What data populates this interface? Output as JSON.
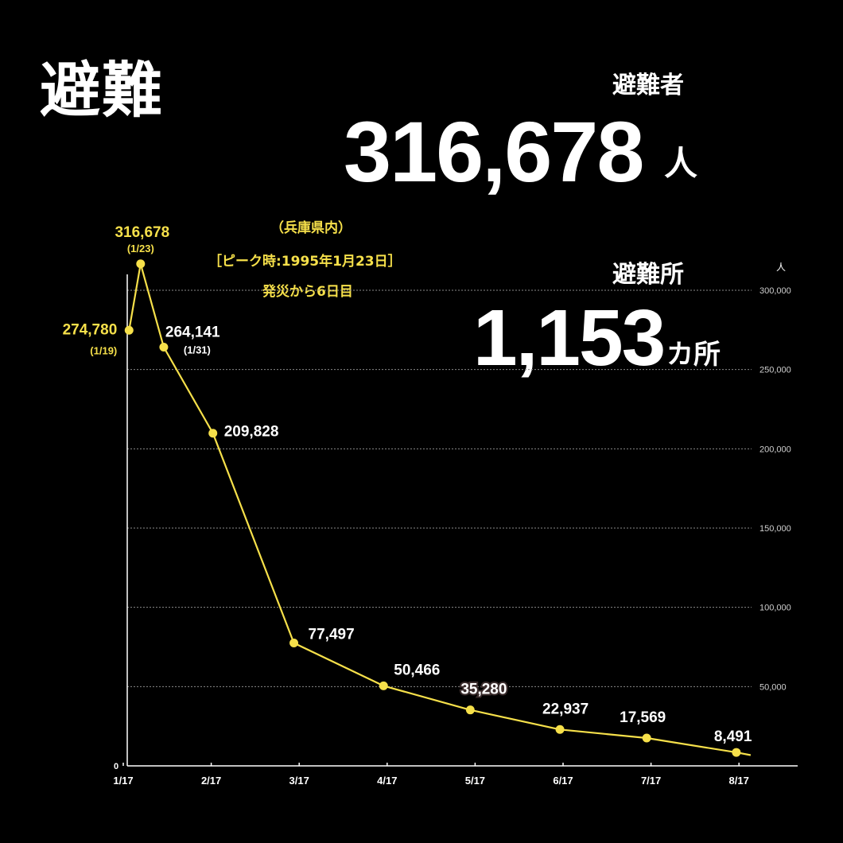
{
  "title": "避難",
  "evacuees": {
    "label": "避難者",
    "value": "316,678",
    "unit": "人"
  },
  "shelters": {
    "label": "避難所",
    "value": "1,153",
    "unit": "カ所"
  },
  "note": {
    "line1": "（兵庫県内）",
    "line2": "［ピーク時:1995年1月23日］",
    "line3": "発災から6日目"
  },
  "colors": {
    "line": "#f6e04a",
    "highlight": "#f6e04a",
    "text": "#ffffff",
    "grid": "#8a8a8a",
    "axis": "#ffffff"
  },
  "chart_data": {
    "type": "line",
    "x": [
      "1/19",
      "1/23",
      "1/31",
      "2/17",
      "3/17",
      "4/17",
      "5/17",
      "6/17",
      "7/17",
      "8/17"
    ],
    "values": [
      274780,
      316678,
      264141,
      209828,
      77497,
      50466,
      35280,
      22937,
      17569,
      8491
    ],
    "data_labels": [
      "274,780",
      "316,678",
      "264,141",
      "209,828",
      "77,497",
      "50,466",
      "35,280",
      "22,937",
      "17,569",
      "8,491"
    ],
    "date_labels": [
      "(1/19)",
      "(1/23)",
      "(1/31)",
      "",
      "",
      "",
      "",
      "",
      "",
      ""
    ],
    "categories": [
      "1/17",
      "2/17",
      "3/17",
      "4/17",
      "5/17",
      "6/17",
      "7/17",
      "8/17"
    ],
    "yticks": [
      "0",
      "50,000",
      "100,000",
      "150,000",
      "200,000",
      "250,000",
      "300,000"
    ],
    "yunit": "人",
    "ylim": [
      0,
      300000
    ],
    "grid": true
  }
}
